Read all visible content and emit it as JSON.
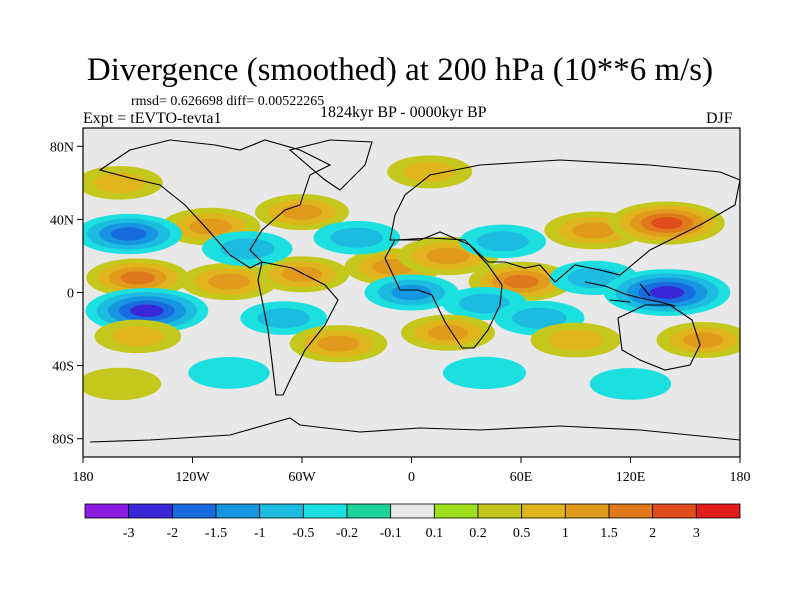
{
  "figure": {
    "title": "Divergence (smoothed) at 200 hPa (10**6 m/s)",
    "stats": "rmsd= 0.626698 diff= 0.00522265",
    "expt": "Expt = tEVTO-tevta1",
    "period": "1824kyr BP - 0000kyr BP",
    "season": "DJF"
  },
  "chart_data": {
    "type": "heatmap",
    "title": "Divergence (smoothed) at 200 hPa (10**6 m/s)",
    "variable": "200 hPa divergence difference",
    "units": "10**6 m/s",
    "season": "DJF",
    "xlim": [
      -180,
      180
    ],
    "ylim": [
      -90,
      90
    ],
    "x_ticks": [
      {
        "value": -180,
        "label": "180"
      },
      {
        "value": -120,
        "label": "120W"
      },
      {
        "value": -60,
        "label": "60W"
      },
      {
        "value": 0,
        "label": "0"
      },
      {
        "value": 60,
        "label": "60E"
      },
      {
        "value": 120,
        "label": "120E"
      },
      {
        "value": 180,
        "label": "180"
      }
    ],
    "y_ticks": [
      {
        "value": 80,
        "label": "80N"
      },
      {
        "value": 40,
        "label": "40N"
      },
      {
        "value": 0,
        "label": "0"
      },
      {
        "value": -40,
        "label": "40S"
      },
      {
        "value": -80,
        "label": "80S"
      }
    ],
    "colorbar": {
      "levels": [
        -3,
        -2,
        -1.5,
        -1,
        -0.5,
        -0.2,
        -0.1,
        0.1,
        0.2,
        0.5,
        1,
        1.5,
        2,
        3
      ],
      "labels": [
        "-3",
        "-2",
        "-1.5",
        "-1",
        "-0.5",
        "-0.2",
        "-0.1",
        "0.1",
        "0.2",
        "0.5",
        "1",
        "1.5",
        "2",
        "3"
      ],
      "colors": [
        "#8c1ce0",
        "#3a28d8",
        "#1a6ae0",
        "#1696e0",
        "#1cbce0",
        "#1ce0e0",
        "#1cd49a",
        "#e8e8e8",
        "#9ee01c",
        "#c4c81c",
        "#e0b41c",
        "#e09a1c",
        "#e0781c",
        "#e04c1c",
        "#e01c1c"
      ]
    },
    "field_blobs": [
      {
        "lon": -150,
        "lat": 8,
        "value": 1.5
      },
      {
        "lon": -100,
        "lat": 6,
        "value": 1.2
      },
      {
        "lon": -60,
        "lat": 10,
        "value": 1.0
      },
      {
        "lon": -10,
        "lat": 14,
        "value": 1.2
      },
      {
        "lon": 20,
        "lat": 20,
        "value": 1.4
      },
      {
        "lon": 60,
        "lat": 6,
        "value": 1.6
      },
      {
        "lon": 100,
        "lat": 34,
        "value": 1.3
      },
      {
        "lon": 140,
        "lat": 38,
        "value": 2.2
      },
      {
        "lon": -110,
        "lat": 36,
        "value": 1.3
      },
      {
        "lon": -60,
        "lat": 44,
        "value": 1.0
      },
      {
        "lon": -160,
        "lat": 60,
        "value": 0.6
      },
      {
        "lon": 10,
        "lat": 66,
        "value": 0.5
      },
      {
        "lon": -155,
        "lat": 32,
        "value": -1.7
      },
      {
        "lon": -90,
        "lat": 24,
        "value": -0.8
      },
      {
        "lon": -30,
        "lat": 30,
        "value": -0.6
      },
      {
        "lon": 50,
        "lat": 28,
        "value": -0.6
      },
      {
        "lon": 0,
        "lat": 0,
        "value": -1.0
      },
      {
        "lon": 40,
        "lat": -6,
        "value": -0.5
      },
      {
        "lon": 100,
        "lat": 8,
        "value": -0.7
      },
      {
        "lon": 140,
        "lat": 0,
        "value": -2.8
      },
      {
        "lon": -145,
        "lat": -10,
        "value": -2.6
      },
      {
        "lon": -150,
        "lat": -24,
        "value": 0.6
      },
      {
        "lon": -70,
        "lat": -14,
        "value": -0.6
      },
      {
        "lon": -40,
        "lat": -28,
        "value": 1.2
      },
      {
        "lon": 20,
        "lat": -22,
        "value": 1.0
      },
      {
        "lon": 70,
        "lat": -14,
        "value": -0.8
      },
      {
        "lon": 90,
        "lat": -26,
        "value": 0.8
      },
      {
        "lon": 160,
        "lat": -26,
        "value": 1.0
      },
      {
        "lon": -100,
        "lat": -44,
        "value": -0.3
      },
      {
        "lon": 40,
        "lat": -44,
        "value": -0.4
      },
      {
        "lon": -160,
        "lat": -50,
        "value": 0.4
      },
      {
        "lon": 120,
        "lat": -50,
        "value": -0.3
      }
    ]
  }
}
